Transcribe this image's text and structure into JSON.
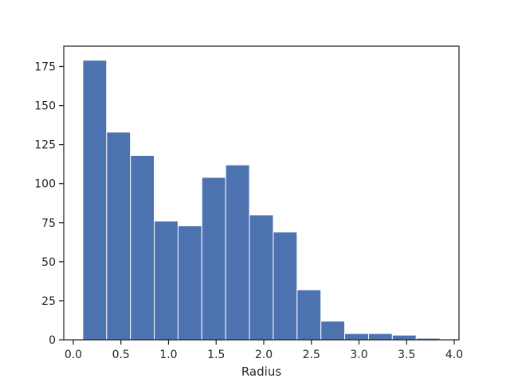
{
  "chart_data": {
    "type": "bar",
    "subtype": "histogram",
    "title": "",
    "xlabel": "Radius",
    "ylabel": "",
    "xlim": [
      -0.1,
      4.05
    ],
    "ylim": [
      0,
      188
    ],
    "x_ticks": [
      0.0,
      0.5,
      1.0,
      1.5,
      2.0,
      2.5,
      3.0,
      3.5,
      4.0
    ],
    "x_tick_labels": [
      "0.0",
      "0.5",
      "1.0",
      "1.5",
      "2.0",
      "2.5",
      "3.0",
      "3.5",
      "4.0"
    ],
    "y_ticks": [
      0,
      25,
      50,
      75,
      100,
      125,
      150,
      175
    ],
    "y_tick_labels": [
      "0",
      "25",
      "50",
      "75",
      "100",
      "125",
      "150",
      "175"
    ],
    "bin_edges": [
      0.1,
      0.35,
      0.6,
      0.85,
      1.1,
      1.35,
      1.6,
      1.85,
      2.1,
      2.35,
      2.6,
      2.85,
      3.1,
      3.35,
      3.6,
      3.85
    ],
    "values": [
      179,
      133,
      118,
      76,
      73,
      104,
      112,
      80,
      69,
      32,
      12,
      4,
      4,
      3,
      1
    ],
    "grid": false,
    "bar_color": "#4c72b0",
    "edge_color": "#ffffff"
  }
}
